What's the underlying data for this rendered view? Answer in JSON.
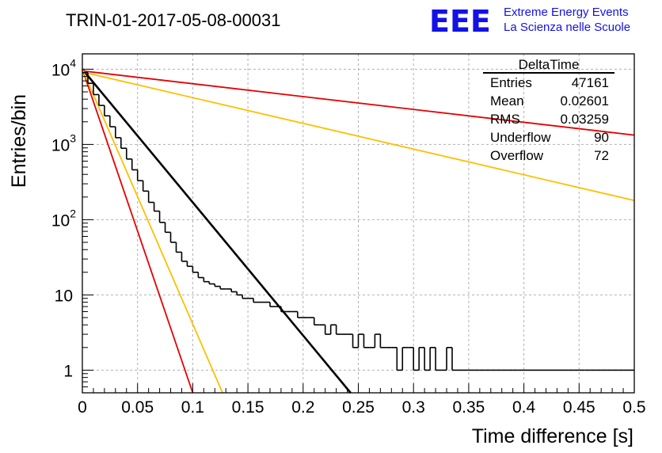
{
  "chart_data": {
    "type": "line",
    "title": "TRIN-01-2017-05-08-00031",
    "xlabel": "Time difference [s]",
    "ylabel": "Entries/bin",
    "xlim": [
      0,
      0.5
    ],
    "ylim": [
      0.5,
      16000
    ],
    "yscale": "log",
    "grid": true,
    "x_ticks": [
      "0",
      "0.05",
      "0.1",
      "0.15",
      "0.2",
      "0.25",
      "0.3",
      "0.35",
      "0.4",
      "0.45",
      "0.5"
    ],
    "y_ticks": [
      {
        "value": 10000,
        "base": "10",
        "exp": "4"
      },
      {
        "value": 1000,
        "base": "10",
        "exp": "3"
      },
      {
        "value": 100,
        "base": "10",
        "exp": "2"
      },
      {
        "value": 10,
        "base": "10",
        "exp": ""
      },
      {
        "value": 1,
        "base": "1",
        "exp": ""
      }
    ],
    "histogram": {
      "name": "DeltaTime",
      "color": "#000000",
      "bin_width": 0.005,
      "values": [
        9000,
        6500,
        4600,
        3300,
        2400,
        1720,
        1230,
        890,
        640,
        460,
        330,
        240,
        170,
        130,
        92,
        68,
        50,
        37,
        28,
        24,
        20,
        17,
        15,
        14,
        13,
        12,
        12,
        11,
        10,
        9,
        9,
        8,
        8,
        8,
        7,
        7,
        6,
        6,
        6,
        5,
        5,
        5,
        4,
        4,
        3,
        4,
        3,
        3,
        3,
        2,
        3,
        2,
        2,
        3,
        2,
        2,
        2,
        1,
        2,
        2,
        1,
        2,
        1,
        2,
        1,
        1,
        2,
        1,
        1,
        1,
        1,
        1,
        1,
        1,
        1,
        1,
        1,
        1,
        1,
        1,
        1,
        1,
        1,
        1,
        1,
        1,
        1,
        1,
        1,
        1,
        1,
        1,
        1,
        1,
        1,
        1,
        1,
        1,
        1,
        1
      ]
    },
    "fits": [
      {
        "color": "#000000",
        "x": [
          0,
          0.243
        ],
        "y": [
          10000,
          0.5
        ]
      },
      {
        "color": "#e60000",
        "x": [
          0,
          0.5
        ],
        "y": [
          9500,
          1330
        ]
      },
      {
        "color": "#ffbf00",
        "x": [
          0,
          0.5
        ],
        "y": [
          9200,
          180
        ]
      },
      {
        "color": "#e60000",
        "x": [
          0,
          0.1
        ],
        "y": [
          10000,
          0.5
        ]
      },
      {
        "color": "#ffbf00",
        "x": [
          0,
          0.127
        ],
        "y": [
          10000,
          0.5
        ]
      }
    ],
    "stats": {
      "name": "DeltaTime",
      "rows": [
        {
          "label": "Entries",
          "value": "47161"
        },
        {
          "label": "Mean",
          "value": "0.02601"
        },
        {
          "label": "RMS",
          "value": "0.03259"
        },
        {
          "label": "Underflow",
          "value": "90"
        },
        {
          "label": "Overflow",
          "value": "72"
        }
      ]
    }
  },
  "logo": {
    "text": "EEE",
    "line1": "Extreme Energy Events",
    "line2": "La Scienza nelle Scuole",
    "color": "#1212e6"
  }
}
